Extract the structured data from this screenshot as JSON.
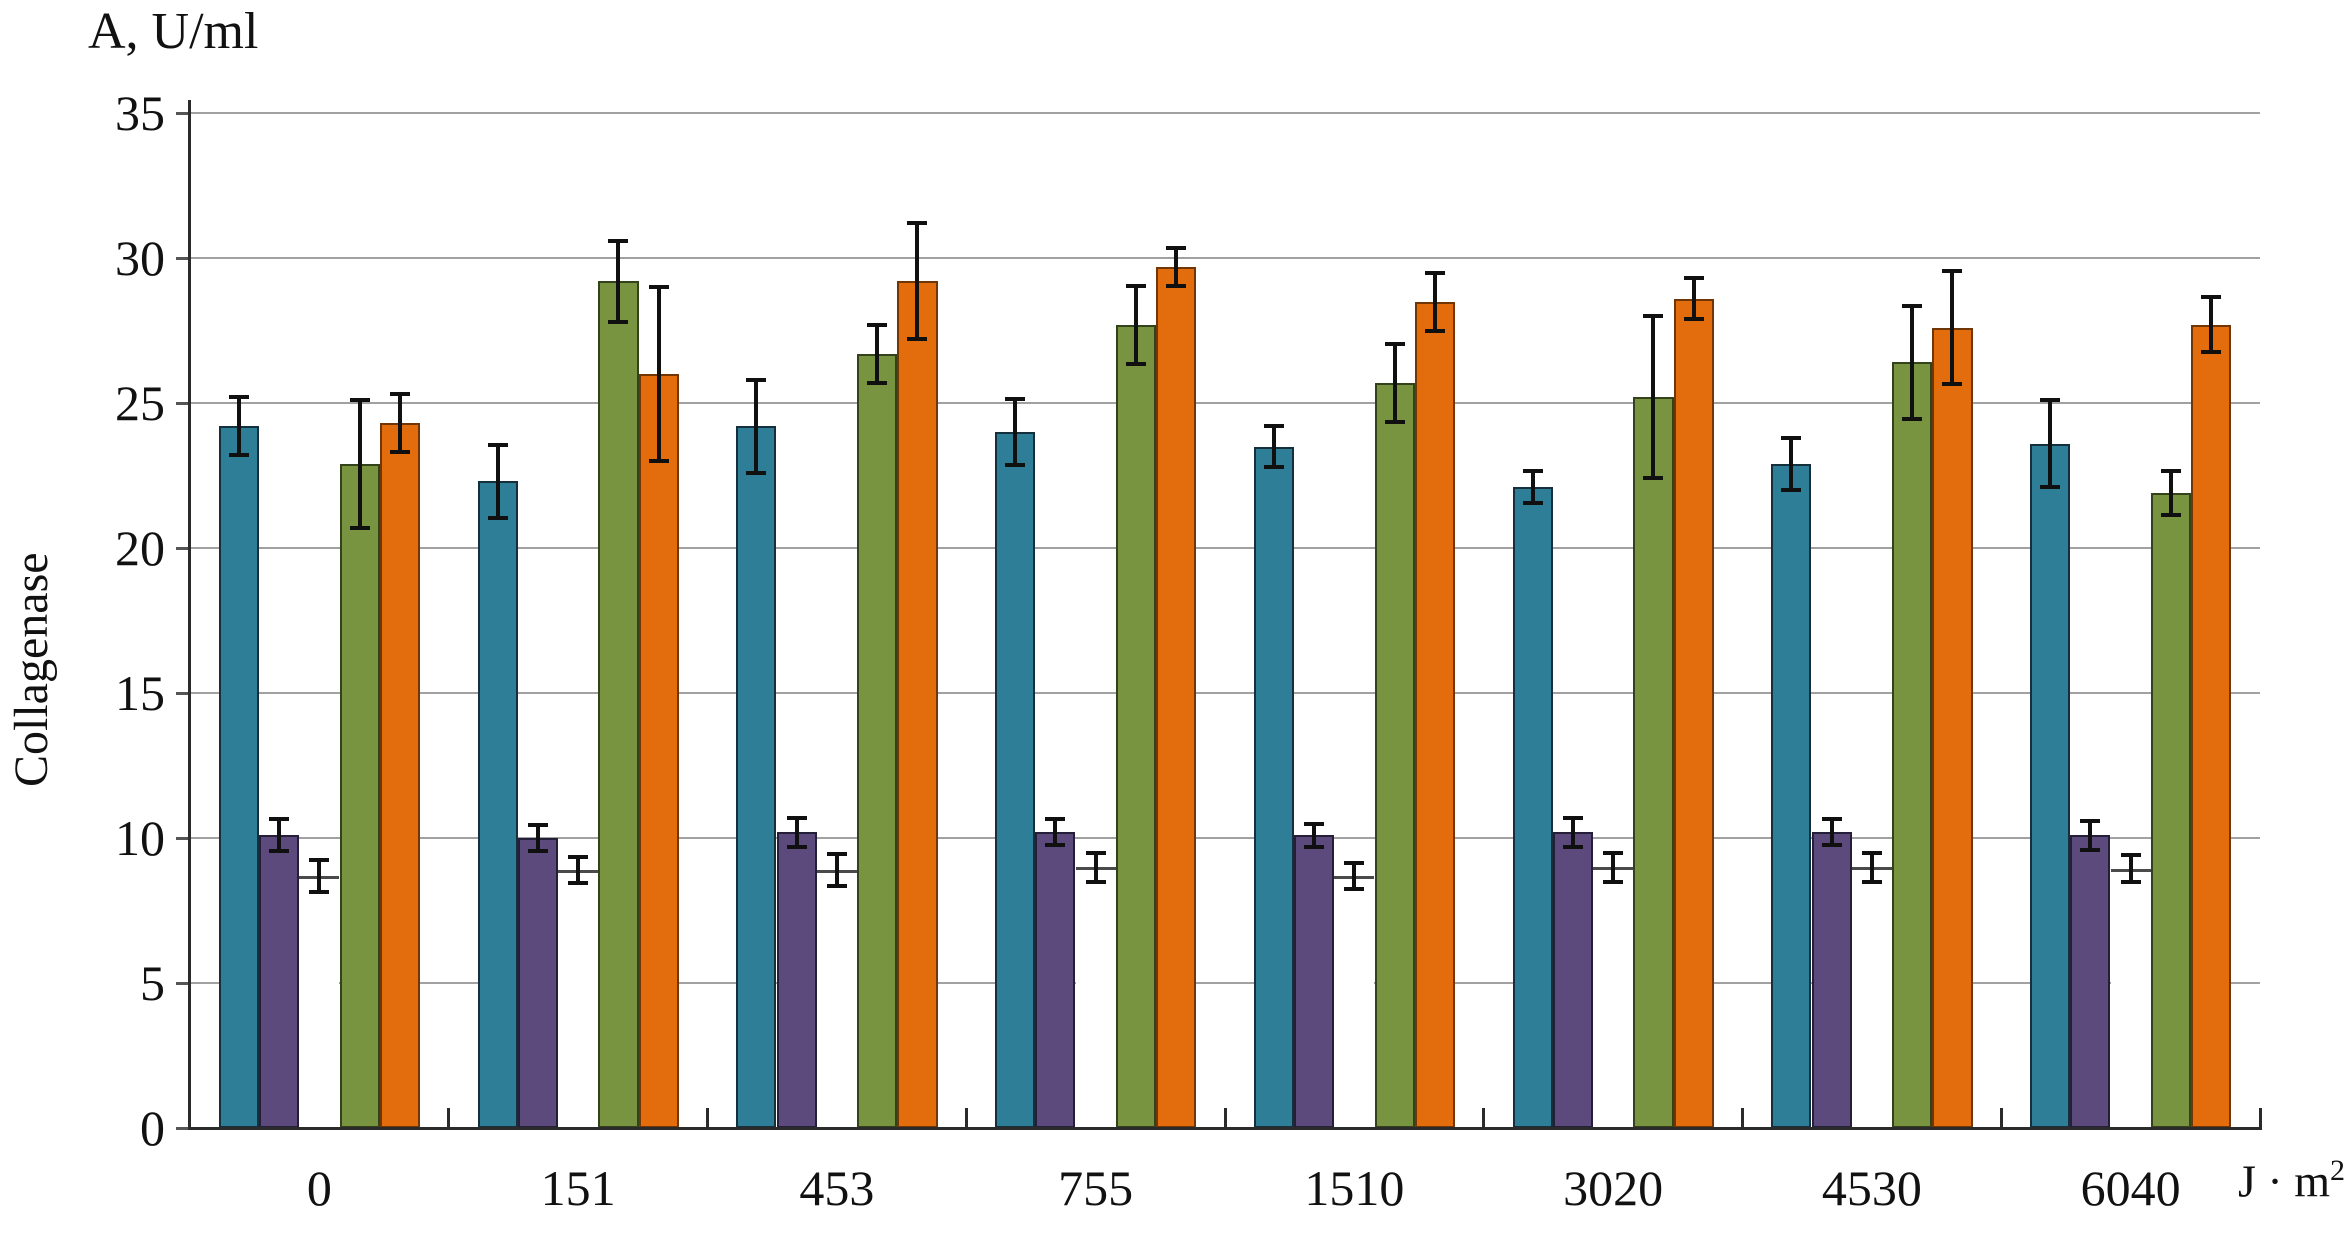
{
  "page": {
    "background": "#FFFFFF"
  },
  "chart_data": {
    "type": "bar",
    "title": "",
    "y_axis_unit": "A, U/ml",
    "ylabel": "Collagenase",
    "x_axis_unit": {
      "text": "J · m",
      "sup": "2"
    },
    "ylim": [
      0,
      35
    ],
    "ytick_step": 5,
    "yticks": [
      35,
      30,
      25,
      20,
      15,
      10,
      5,
      0
    ],
    "grid": true,
    "legend": "none",
    "gridline_color": "#A1A1A1",
    "axis_color": "#2B2B2B",
    "error_bar_color": "#101010",
    "categories": [
      "0",
      "151",
      "453",
      "755",
      "1510",
      "3020",
      "4530",
      "6040"
    ],
    "series": [
      {
        "name": "series-1-teal",
        "fill": "#2E7E97",
        "border": "#15303C",
        "outline": "full",
        "values": [
          24.2,
          22.3,
          24.2,
          24.0,
          23.5,
          22.1,
          22.9,
          23.6
        ],
        "errors": [
          1.0,
          1.25,
          1.6,
          1.15,
          0.7,
          0.55,
          0.9,
          1.5
        ]
      },
      {
        "name": "series-2-purple",
        "fill": "#5D4A7C",
        "border": "#251E38",
        "outline": "full",
        "values": [
          10.1,
          10.0,
          10.2,
          10.2,
          10.1,
          10.2,
          10.2,
          10.1
        ],
        "errors": [
          0.55,
          0.45,
          0.5,
          0.45,
          0.4,
          0.5,
          0.45,
          0.5
        ]
      },
      {
        "name": "series-3-white",
        "fill": "#FFFFFF",
        "border": "#4A4A4A",
        "outline": "top",
        "values": [
          8.7,
          8.9,
          8.9,
          9.0,
          8.7,
          9.0,
          9.0,
          8.95
        ],
        "errors": [
          0.55,
          0.45,
          0.55,
          0.5,
          0.45,
          0.5,
          0.5,
          0.45
        ]
      },
      {
        "name": "series-4-green",
        "fill": "#789440",
        "border": "#33421A",
        "outline": "full",
        "values": [
          22.9,
          29.2,
          26.7,
          27.7,
          25.7,
          25.2,
          26.4,
          21.9
        ],
        "errors": [
          2.2,
          1.4,
          1.0,
          1.35,
          1.35,
          2.8,
          1.95,
          0.75
        ]
      },
      {
        "name": "series-5-orange",
        "fill": "#E36D0C",
        "border": "#713606",
        "outline": "full",
        "values": [
          24.3,
          26.0,
          29.2,
          29.7,
          28.5,
          28.6,
          27.6,
          27.7
        ],
        "errors": [
          1.0,
          3.0,
          2.0,
          0.65,
          1.0,
          0.7,
          1.95,
          0.95
        ]
      }
    ]
  }
}
